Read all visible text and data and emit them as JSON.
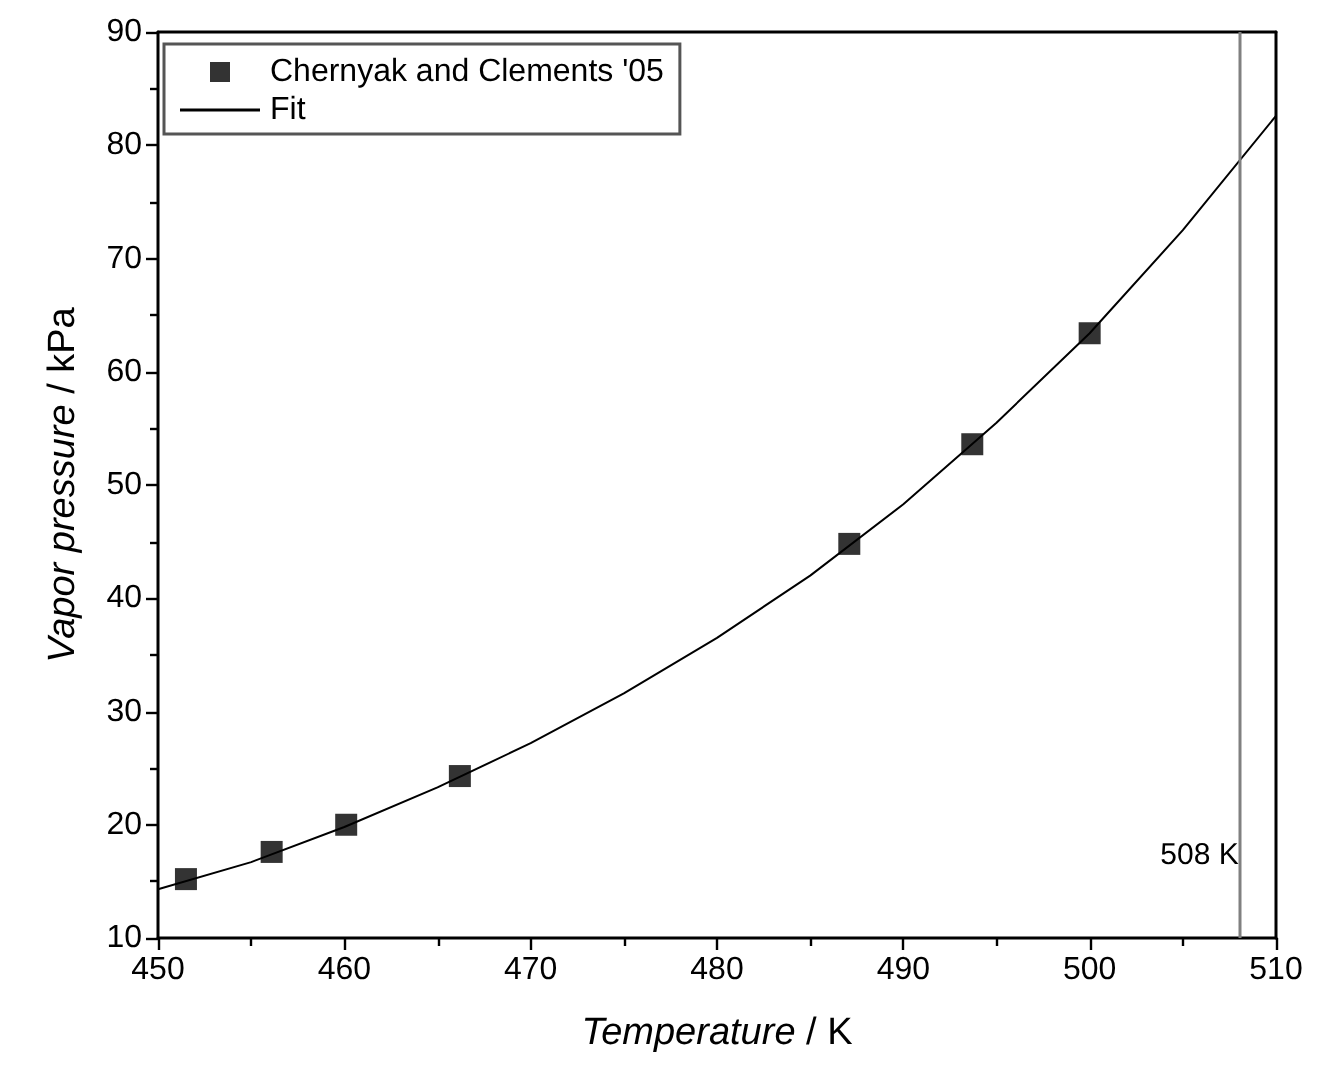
{
  "chart_data": {
    "type": "scatter",
    "xlabel": "Temperature / K",
    "ylabel": "Vapor pressure / kPa",
    "xlim": [
      450,
      510
    ],
    "xticks": [
      450,
      460,
      470,
      480,
      490,
      500,
      510
    ],
    "ylim": [
      10,
      90
    ],
    "yticks": [
      10,
      20,
      30,
      40,
      50,
      60,
      70,
      80,
      90
    ],
    "grid": false,
    "legend": "top left",
    "marker": "square",
    "series": [
      {
        "name": "Chernyak and Clements '05",
        "color": "#000000",
        "x": [
          451.5,
          456.1,
          460.1,
          466.2,
          487.1,
          493.7,
          500.0
        ],
        "values": [
          15.2,
          17.6,
          20.0,
          24.3,
          44.8,
          53.6,
          63.4
        ]
      },
      {
        "name": "Fit",
        "type": "line",
        "color": "#000000",
        "marker": "none",
        "line_style": "solid",
        "x": [
          450,
          455,
          460,
          465,
          470,
          475,
          480,
          485,
          490,
          495,
          500,
          505,
          510
        ],
        "values": [
          14.3,
          16.7,
          19.8,
          23.3,
          27.2,
          31.6,
          36.5,
          42.0,
          48.3,
          55.5,
          63.4,
          72.5,
          82.6
        ]
      }
    ],
    "ref_lines": [
      {
        "axis": "x",
        "value": 508,
        "label": "508 K",
        "color": "#808080"
      }
    ]
  }
}
